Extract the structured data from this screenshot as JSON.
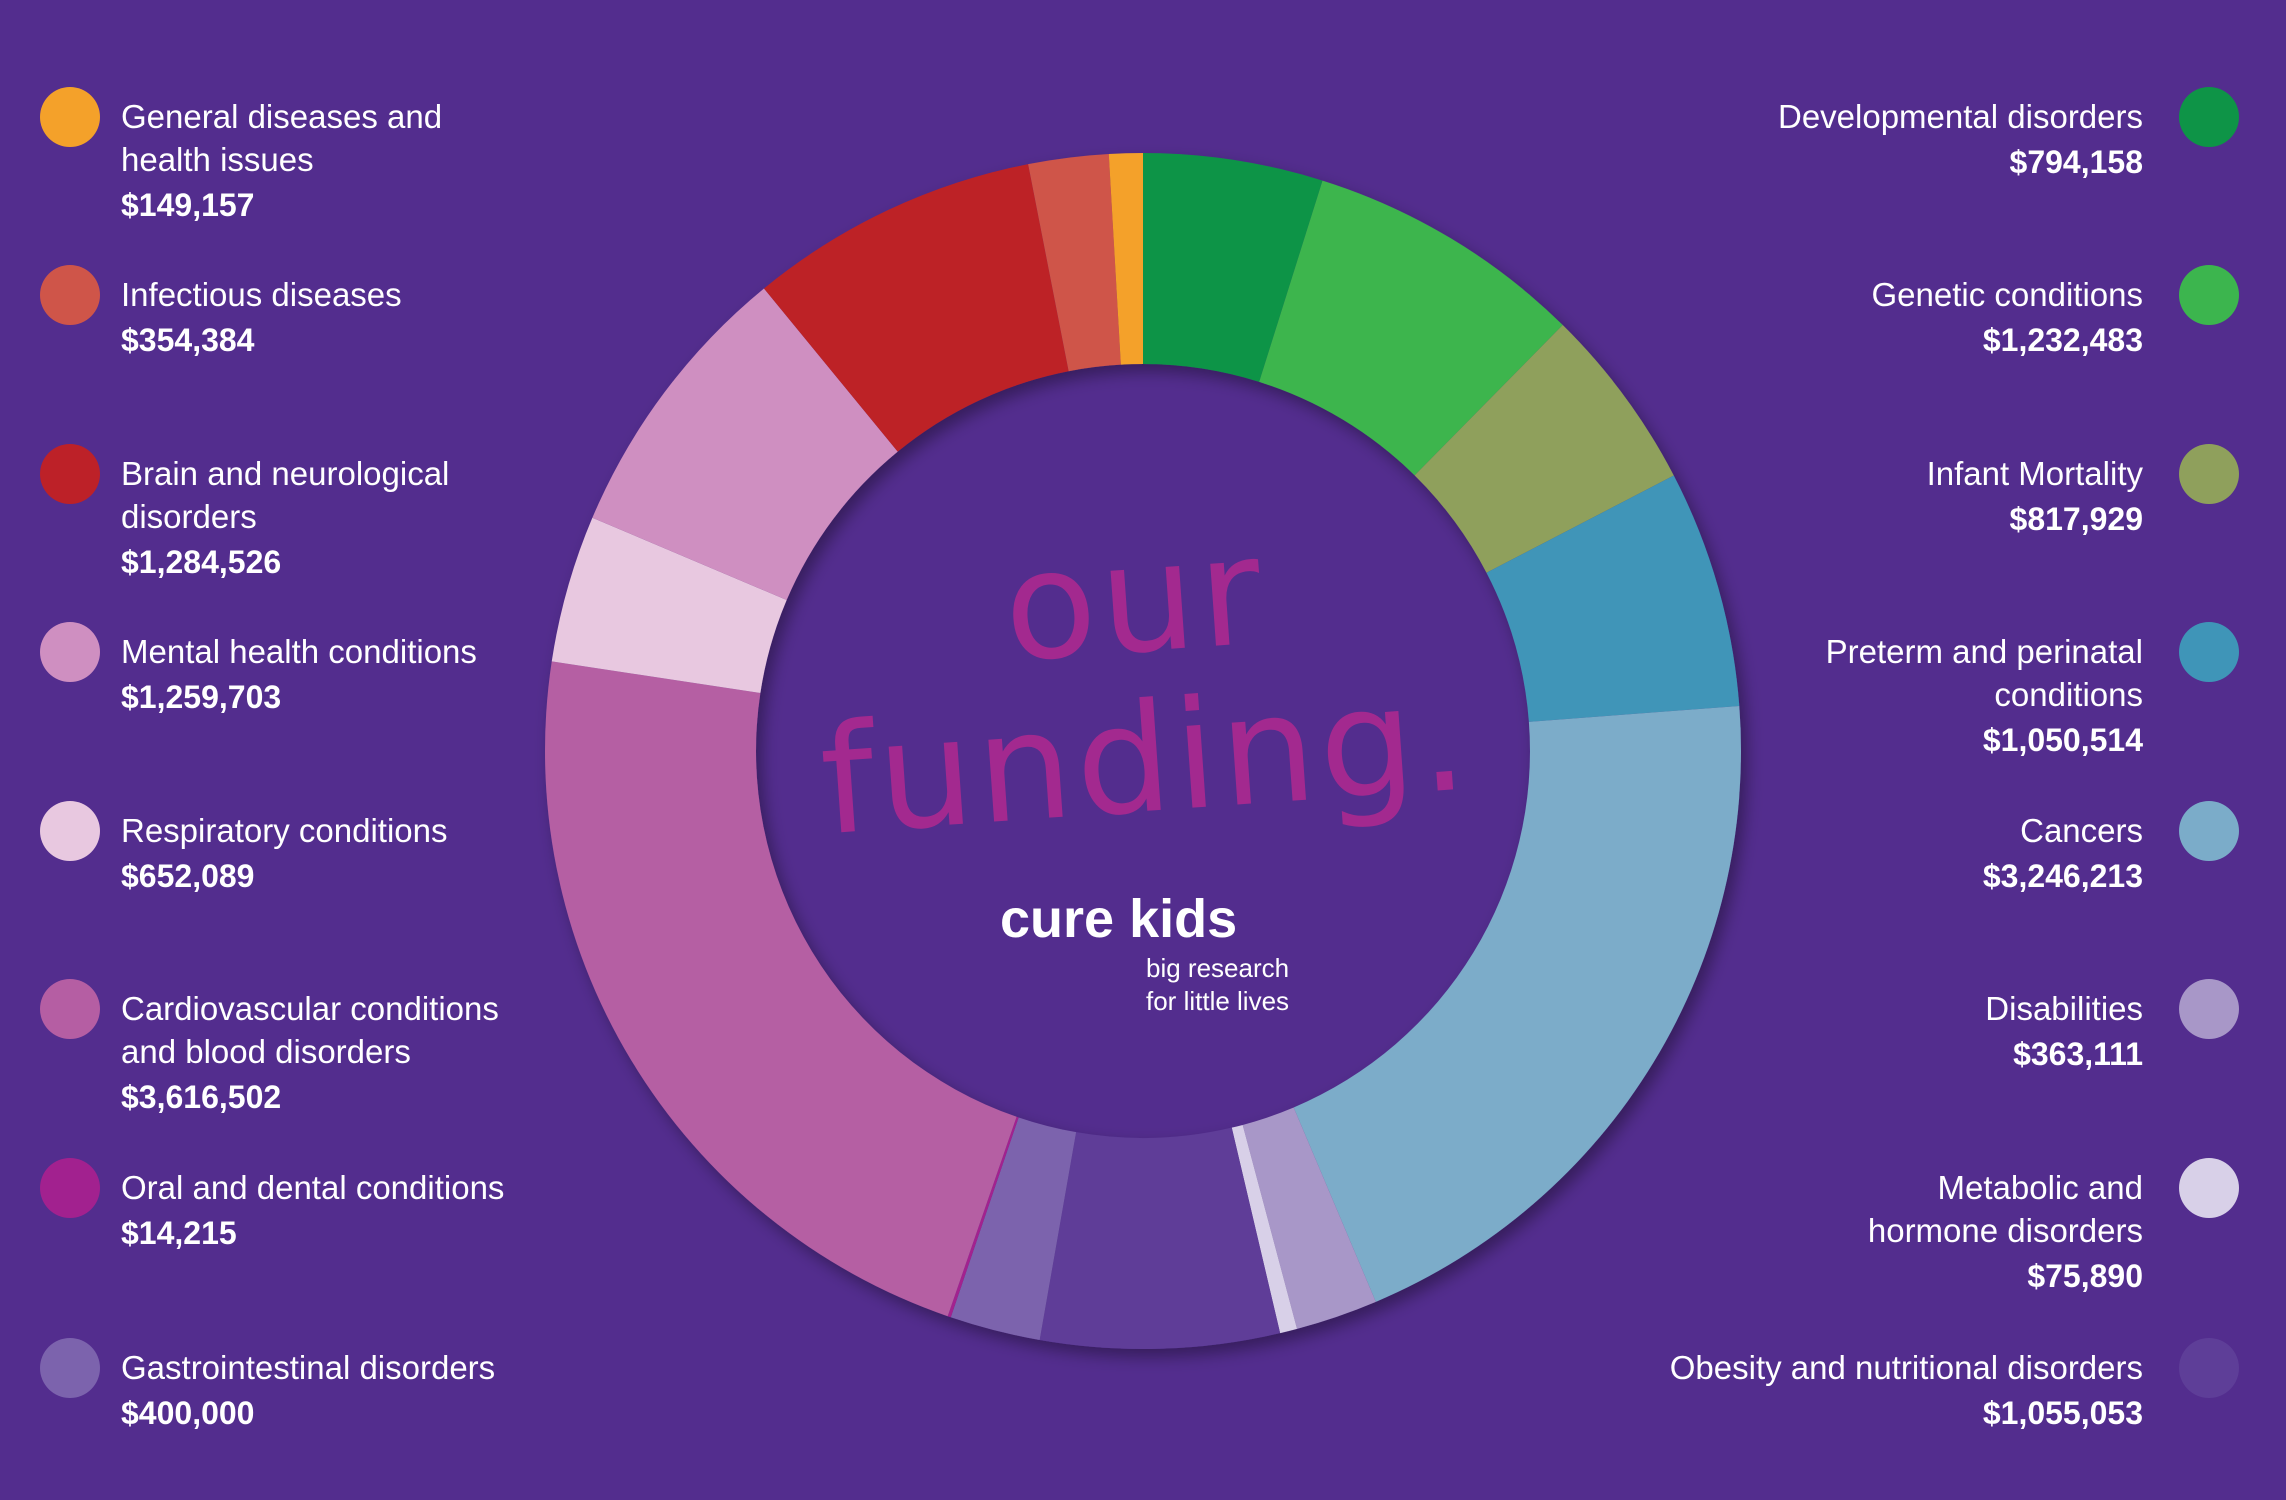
{
  "chart_data": {
    "type": "pie",
    "title": "our\nfunding.",
    "logo": "cure kids",
    "tagline": "big research\nfor little lives",
    "categories": [
      "Developmental disorders",
      "Genetic conditions",
      "Infant Mortality",
      "Preterm and perinatal\nconditions",
      "Cancers",
      "Disabilities",
      "Metabolic and\nhormone disorders",
      "Obesity and nutritional disorders",
      "Gastrointestinal disorders",
      "Oral and dental conditions",
      "Cardiovascular conditions\nand blood disorders",
      "Respiratory conditions",
      "Mental health conditions",
      "Brain and neurological\ndisorders",
      "Infectious diseases",
      "General diseases and\nhealth issues"
    ],
    "values": [
      794158,
      1232483,
      817929,
      1050514,
      3246213,
      363111,
      75890,
      1055053,
      400000,
      14215,
      3616502,
      652089,
      1259703,
      1284526,
      354384,
      149157
    ],
    "value_labels": [
      "$794,158",
      "$1,232,483",
      "$817,929",
      "$1,050,514",
      "$3,246,213",
      "$363,111",
      "$75,890",
      "$1,055,053",
      "$400,000",
      "$14,215",
      "$3,616,502",
      "$652,089",
      "$1,259,703",
      "$1,284,526",
      "$354,384",
      "$149,157"
    ],
    "colors": [
      "#0e9447",
      "#3cb54e",
      "#8fa05c",
      "#3f95b8",
      "#7bacc9",
      "#a897c8",
      "#d8d0e8",
      "#5e3e98",
      "#7c63ad",
      "#a2218f",
      "#b55ea3",
      "#e8c8e0",
      "#cf8fc1",
      "#bd2128",
      "#cf5549",
      "#f4a12a"
    ]
  }
}
